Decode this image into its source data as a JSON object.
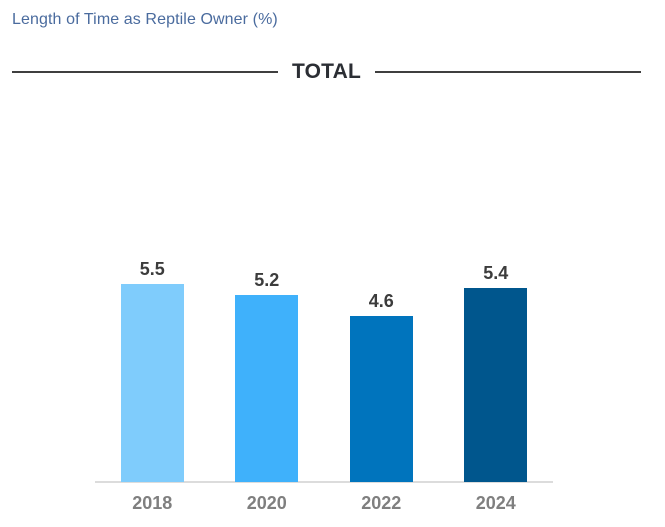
{
  "page": {
    "title": "Length of Time as Reptile Owner (%)",
    "section_label": "TOTAL"
  },
  "chart_data": {
    "type": "bar",
    "title": "Length of Time as Reptile Owner (%)",
    "group_label": "TOTAL",
    "categories": [
      "2018",
      "2020",
      "2022",
      "2024"
    ],
    "values": [
      5.5,
      5.2,
      4.6,
      5.4
    ],
    "value_labels": [
      "5.5",
      "5.2",
      "4.6",
      "5.4"
    ],
    "bar_colors": [
      "#7fccfc",
      "#3fb1fb",
      "#0074bd",
      "#00568d"
    ],
    "ylim": [
      0,
      6
    ],
    "grid": false,
    "legend": false,
    "y_axis_visible": false,
    "axis_line_color": "#dcdcdc",
    "value_label_color": "#3c3c3c",
    "category_label_color": "#7f7f7f",
    "title_color": "#4a6b9e",
    "divider_color": "#3f3f3f",
    "unit": "percent"
  }
}
